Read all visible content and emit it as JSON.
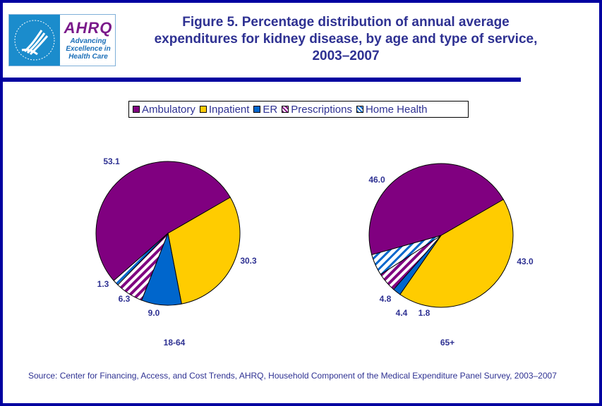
{
  "header": {
    "logo": {
      "hhs_icon": "hhs-eagle-icon",
      "ahrq_name": "AHRQ",
      "ahrq_tagline": [
        "Advancing",
        "Excellence in",
        "Health Care"
      ]
    },
    "title": "Figure 5. Percentage distribution of annual average expenditures for kidney disease, by age and type of service, 2003–2007"
  },
  "colors": {
    "Ambulatory": "#800080",
    "Inpatient": "#ffcc00",
    "ER": "#0066cc",
    "Prescriptions": "#800080",
    "Home Health": "#0066cc",
    "text": "#2e3192",
    "frame": "#0000a0"
  },
  "chart_data": {
    "type": "pie",
    "title": "Figure 5. Percentage distribution of annual average expenditures for kidney disease, by age and type of service, 2003–2007",
    "legend": {
      "position": "top-center",
      "entries": [
        {
          "label": "Ambulatory",
          "pattern": "solid"
        },
        {
          "label": "Inpatient",
          "pattern": "solid"
        },
        {
          "label": "ER",
          "pattern": "solid"
        },
        {
          "label": "Prescriptions",
          "pattern": "diagonal-stripes"
        },
        {
          "label": "Home Health",
          "pattern": "diagonal-stripes"
        }
      ]
    },
    "categories": [
      "Ambulatory",
      "Inpatient",
      "ER",
      "Prescriptions",
      "Home Health"
    ],
    "pies": [
      {
        "name": "18-64",
        "values": [
          53.1,
          30.3,
          9.0,
          6.3,
          1.3
        ],
        "labels": [
          "53.1",
          "30.3",
          "9.0",
          "6.3",
          "1.3"
        ]
      },
      {
        "name": "65+",
        "values": [
          46.0,
          43.0,
          1.8,
          4.4,
          4.8
        ],
        "labels": [
          "46.0",
          "43.0",
          "1.8",
          "4.4",
          "4.8"
        ]
      }
    ],
    "units": "percent"
  },
  "footer": {
    "source": "Source: Center for Financing, Access, and Cost Trends, AHRQ, Household Component of the Medical Expenditure Panel Survey, 2003–2007"
  }
}
